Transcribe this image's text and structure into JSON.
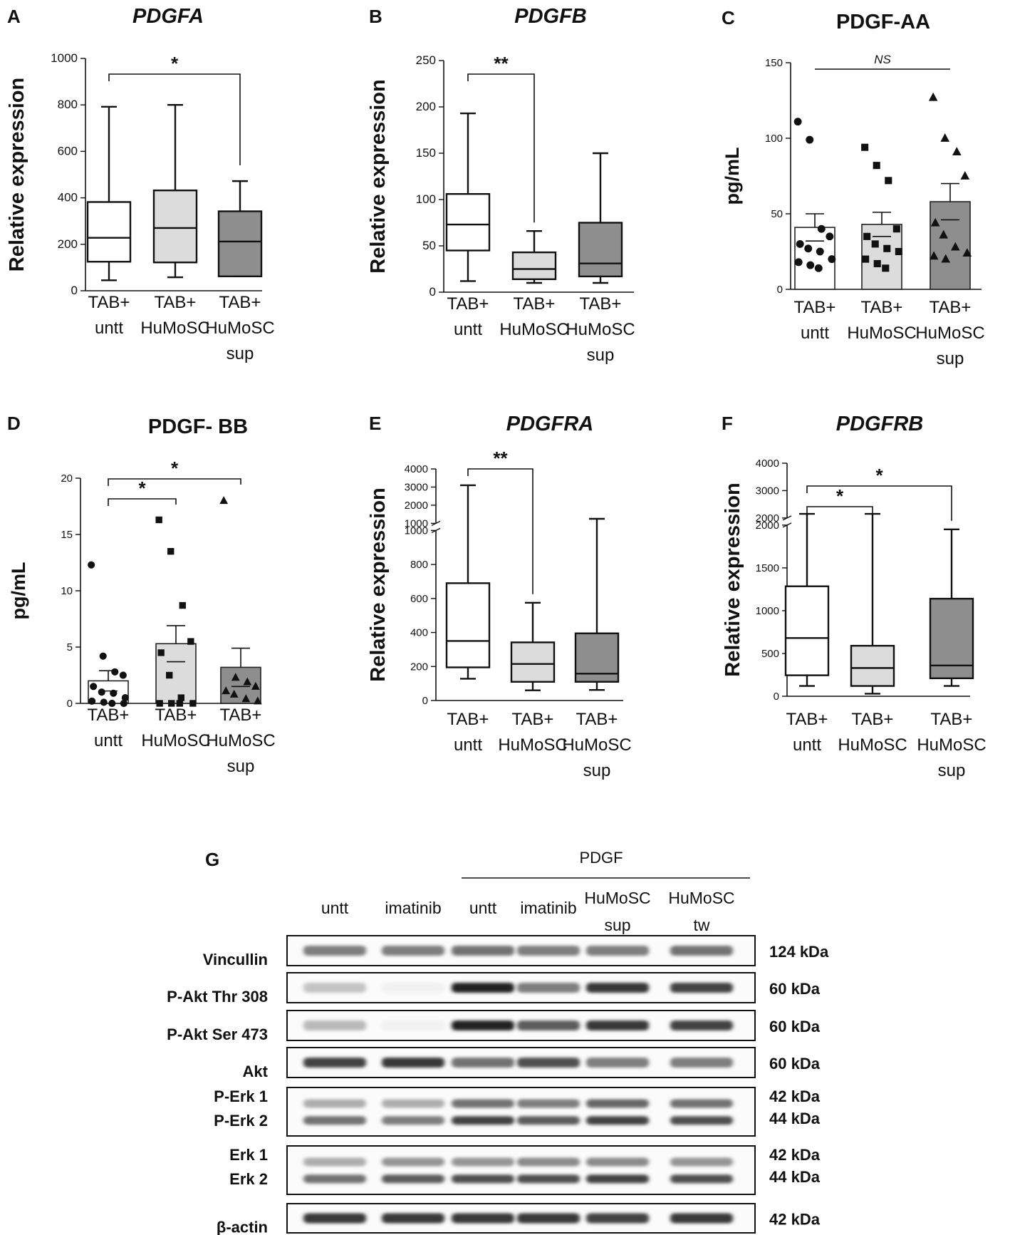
{
  "chart_data": [
    {
      "panel": "A",
      "title": "PDGFA",
      "type": "box",
      "ylabel": "Relative expression",
      "ylim": [
        0,
        1000
      ],
      "yticks": [
        0,
        200,
        400,
        600,
        800,
        1000
      ],
      "categories": [
        [
          "TAB+",
          "untt"
        ],
        [
          "TAB+",
          "HuMoSC"
        ],
        [
          "TAB+",
          "HuMoSC",
          "sup"
        ]
      ],
      "boxes": [
        {
          "min": 45,
          "q1": 125,
          "median": 228,
          "q3": 382,
          "max": 792,
          "fill": "#ffffff"
        },
        {
          "min": 58,
          "q1": 122,
          "median": 270,
          "q3": 432,
          "max": 800,
          "fill": "#dcdcdc"
        },
        {
          "min": 62,
          "q1": 62,
          "median": 212,
          "q3": 342,
          "max": 472,
          "fill": "#8e8e8e"
        }
      ],
      "significance": [
        {
          "from": 0,
          "to": 2,
          "label": "*"
        }
      ]
    },
    {
      "panel": "B",
      "title": "PDGFB",
      "type": "box",
      "ylabel": "Relative expression",
      "ylim": [
        0,
        250
      ],
      "yticks": [
        0,
        50,
        100,
        150,
        200,
        250
      ],
      "categories": [
        [
          "TAB+",
          "untt"
        ],
        [
          "TAB+",
          "HuMoSC"
        ],
        [
          "TAB+",
          "HuMoSC",
          "sup"
        ]
      ],
      "boxes": [
        {
          "min": 12,
          "q1": 45,
          "median": 73,
          "q3": 106,
          "max": 193,
          "fill": "#ffffff"
        },
        {
          "min": 10,
          "q1": 14,
          "median": 25,
          "q3": 43,
          "max": 66,
          "fill": "#dcdcdc"
        },
        {
          "min": 10,
          "q1": 17,
          "median": 31,
          "q3": 75,
          "max": 150,
          "fill": "#8e8e8e"
        }
      ],
      "significance": [
        {
          "from": 0,
          "to": 1,
          "label": "**"
        }
      ]
    },
    {
      "panel": "C",
      "title": "PDGF-AA",
      "type": "bar",
      "ylabel": "pg/mL",
      "ylim": [
        0,
        150
      ],
      "yticks": [
        0,
        50,
        100,
        150
      ],
      "categories": [
        [
          "TAB+",
          "untt"
        ],
        [
          "TAB+",
          "HuMoSC"
        ],
        [
          "TAB+",
          "HuMoSC",
          "sup"
        ]
      ],
      "series": [
        {
          "mean": 41,
          "sem": 9,
          "fill": "#ffffff",
          "marker": "circle",
          "points": [
            111,
            99,
            40,
            35,
            30,
            27,
            25,
            20,
            18,
            16,
            14
          ]
        },
        {
          "mean": 43,
          "sem": 8,
          "fill": "#dcdcdc",
          "marker": "square",
          "points": [
            94,
            82,
            72,
            40,
            35,
            30,
            27,
            25,
            20,
            17,
            14
          ]
        },
        {
          "mean": 58,
          "sem": 12,
          "fill": "#8e8e8e",
          "marker": "triangle",
          "points": [
            127,
            100,
            91,
            75,
            44,
            36,
            28,
            24,
            22,
            20
          ]
        }
      ],
      "significance": [
        {
          "from": 0,
          "to": 2,
          "label": "NS"
        }
      ]
    },
    {
      "panel": "D",
      "title": "PDGF- BB",
      "type": "bar",
      "ylabel": "pg/mL",
      "ylim": [
        0,
        20
      ],
      "yticks": [
        0,
        5,
        10,
        15,
        20
      ],
      "categories": [
        [
          "TAB+",
          "untt"
        ],
        [
          "TAB+",
          "HuMoSC"
        ],
        [
          "TAB+",
          "HuMoSC",
          "sup"
        ]
      ],
      "series": [
        {
          "mean": 2.0,
          "sem": 0.9,
          "fill": "#ffffff",
          "marker": "circle",
          "points": [
            12.3,
            4.2,
            2.8,
            2.5,
            1.5,
            1.0,
            0.9,
            0.5,
            0.2,
            0.1,
            0,
            0
          ]
        },
        {
          "mean": 5.3,
          "sem": 1.6,
          "fill": "#dcdcdc",
          "marker": "square",
          "points": [
            16.3,
            13.5,
            8.7,
            5.5,
            4.5,
            2.5,
            0.5,
            0,
            0,
            0,
            0
          ]
        },
        {
          "mean": 3.2,
          "sem": 1.7,
          "fill": "#8e8e8e",
          "marker": "triangle",
          "points": [
            18.0,
            2.3,
            1.9,
            1.5,
            1.1,
            0.8,
            0.4,
            0.2
          ]
        }
      ],
      "significance": [
        {
          "from": 0,
          "to": 1,
          "label": "*"
        },
        {
          "from": 0,
          "to": 2,
          "label": "*"
        }
      ]
    },
    {
      "panel": "E",
      "title": "PDGFRA",
      "type": "box",
      "ylabel": "Relative expression",
      "axis_break": {
        "lower_max": 1000,
        "upper_min": 1000,
        "upper_max": 4000
      },
      "yticks_lower": [
        0,
        200,
        400,
        600,
        800,
        1000
      ],
      "yticks_upper": [
        1000,
        2000,
        3000,
        4000
      ],
      "categories": [
        [
          "TAB+",
          "untt"
        ],
        [
          "TAB+",
          "HuMoSC"
        ],
        [
          "TAB+",
          "HuMoSC",
          "sup"
        ]
      ],
      "boxes": [
        {
          "min": 128,
          "q1": 195,
          "median": 350,
          "q3": 690,
          "max": 3100,
          "fill": "#ffffff"
        },
        {
          "min": 60,
          "q1": 110,
          "median": 215,
          "q3": 342,
          "max": 575,
          "fill": "#dcdcdc"
        },
        {
          "min": 62,
          "q1": 110,
          "median": 158,
          "q3": 395,
          "max": 1250,
          "fill": "#8e8e8e"
        }
      ],
      "significance": [
        {
          "from": 0,
          "to": 1,
          "label": "**"
        }
      ]
    },
    {
      "panel": "F",
      "title": "PDGFRB",
      "type": "box",
      "ylabel": "Relative expression",
      "axis_break": {
        "lower_max": 2000,
        "upper_min": 2000,
        "upper_max": 4000
      },
      "yticks_lower": [
        0,
        500,
        1000,
        1500,
        2000
      ],
      "yticks_upper": [
        2000,
        3000,
        4000
      ],
      "categories": [
        [
          "TAB+",
          "untt"
        ],
        [
          "TAB+",
          "HuMoSC"
        ],
        [
          "TAB+",
          "HuMoSC",
          "sup"
        ]
      ],
      "boxes": [
        {
          "min": 120,
          "q1": 245,
          "median": 680,
          "q3": 1285,
          "max": 2150,
          "fill": "#ffffff"
        },
        {
          "min": 30,
          "q1": 120,
          "median": 330,
          "q3": 590,
          "max": 2150,
          "fill": "#dcdcdc"
        },
        {
          "min": 120,
          "q1": 210,
          "median": 360,
          "q3": 1140,
          "max": 1950,
          "fill": "#8e8e8e"
        }
      ],
      "significance": [
        {
          "from": 0,
          "to": 1,
          "label": "*"
        },
        {
          "from": 0,
          "to": 2,
          "label": "*"
        }
      ]
    }
  ],
  "western_blot": {
    "panel": "G",
    "group_label": "PDGF",
    "lanes": [
      [
        "untt"
      ],
      [
        "imatinib"
      ],
      [
        "untt"
      ],
      [
        "imatinib"
      ],
      [
        "HuMoSC",
        "sup"
      ],
      [
        "HuMoSC",
        "tw"
      ]
    ],
    "rows": [
      {
        "labels": [
          "Vincullin"
        ],
        "kda": [
          "124 kDa"
        ],
        "bands": [
          [
            0.55,
            0.55,
            0.6,
            0.55,
            0.55,
            0.6
          ]
        ]
      },
      {
        "labels": [
          "P-Akt Thr 308"
        ],
        "kda": [
          "60 kDa"
        ],
        "bands": [
          [
            0.25,
            0.06,
            0.95,
            0.55,
            0.85,
            0.8
          ]
        ]
      },
      {
        "labels": [
          "P-Akt Ser 473"
        ],
        "kda": [
          "60 kDa"
        ],
        "bands": [
          [
            0.3,
            0.06,
            0.95,
            0.7,
            0.85,
            0.8
          ]
        ]
      },
      {
        "labels": [
          "Akt"
        ],
        "kda": [
          "60 kDa"
        ],
        "bands": [
          [
            0.8,
            0.85,
            0.6,
            0.75,
            0.55,
            0.55
          ]
        ]
      },
      {
        "labels": [
          "P-Erk 1",
          "P-Erk 2"
        ],
        "kda": [
          "42 kDa",
          "44 kDa"
        ],
        "bands": [
          [
            0.35,
            0.35,
            0.6,
            0.55,
            0.65,
            0.6
          ],
          [
            0.6,
            0.55,
            0.8,
            0.7,
            0.8,
            0.75
          ]
        ]
      },
      {
        "labels": [
          "Erk 1",
          "Erk 2"
        ],
        "kda": [
          "42 kDa",
          "44 kDa"
        ],
        "bands": [
          [
            0.35,
            0.45,
            0.45,
            0.5,
            0.5,
            0.45
          ],
          [
            0.6,
            0.7,
            0.75,
            0.75,
            0.8,
            0.75
          ]
        ]
      },
      {
        "labels": [
          "β-actin"
        ],
        "kda": [
          "42 kDa"
        ],
        "bands": [
          [
            0.85,
            0.85,
            0.85,
            0.85,
            0.8,
            0.85
          ]
        ]
      }
    ]
  }
}
